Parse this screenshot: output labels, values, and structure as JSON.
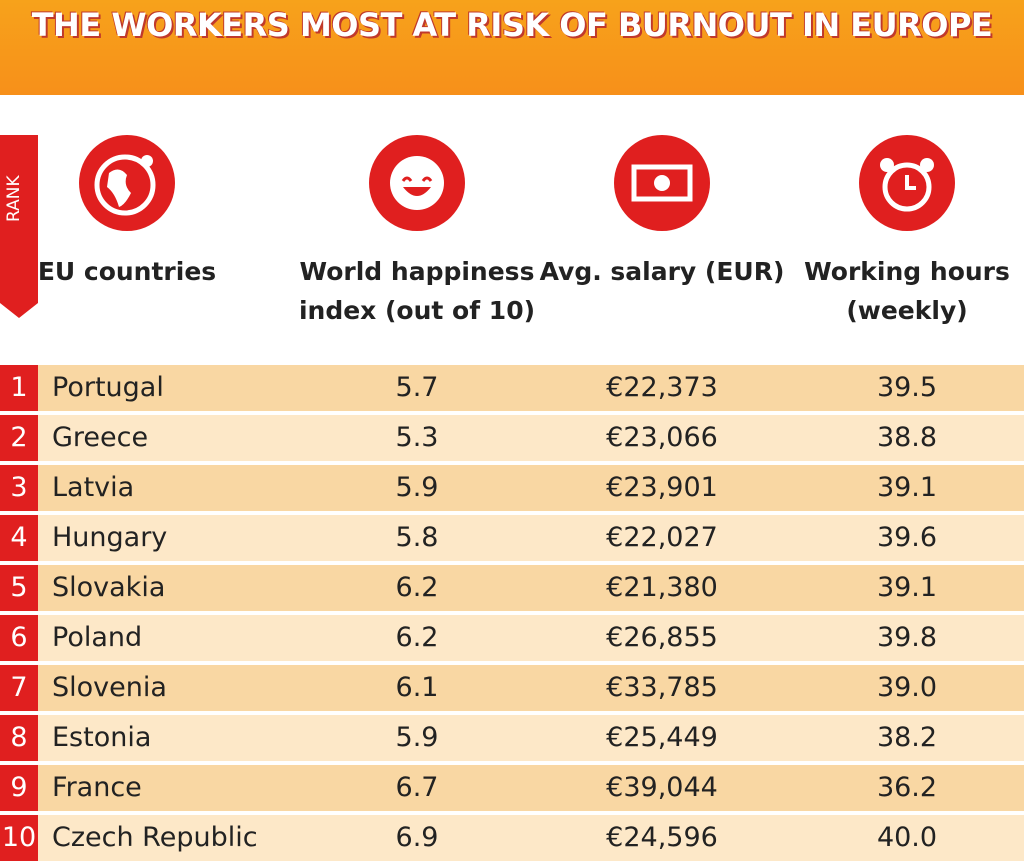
{
  "title": "THE WORKERS MOST AT RISK OF BURNOUT IN EUROPE",
  "rank_label": "RANK",
  "headers": [
    "EU countries",
    "World happiness index (out of 10)",
    "Avg. salary (EUR)",
    "Working hours (weekly)"
  ],
  "rows": [
    [
      "1",
      "Portugal",
      "5.7",
      "€22,373",
      "39.5"
    ],
    [
      "2",
      "Greece",
      "5.3",
      "€23,066",
      "38.8"
    ],
    [
      "3",
      "Latvia",
      "5.9",
      "€23,901",
      "39.1"
    ],
    [
      "4",
      "Hungary",
      "5.8",
      "€22,027",
      "39.6"
    ],
    [
      "5",
      "Slovakia",
      "6.2",
      "€21,380",
      "39.1"
    ],
    [
      "6",
      "Poland",
      "6.2",
      "€26,855",
      "39.8"
    ],
    [
      "7",
      "Slovenia",
      "6.1",
      "€33,785",
      "39.0"
    ],
    [
      "8",
      "Estonia",
      "5.9",
      "€25,449",
      "38.2"
    ],
    [
      "9",
      "France",
      "6.7",
      "€39,044",
      "36.2"
    ],
    [
      "10",
      "Czech Republic",
      "6.9",
      "€24,596",
      "40.0"
    ]
  ]
}
